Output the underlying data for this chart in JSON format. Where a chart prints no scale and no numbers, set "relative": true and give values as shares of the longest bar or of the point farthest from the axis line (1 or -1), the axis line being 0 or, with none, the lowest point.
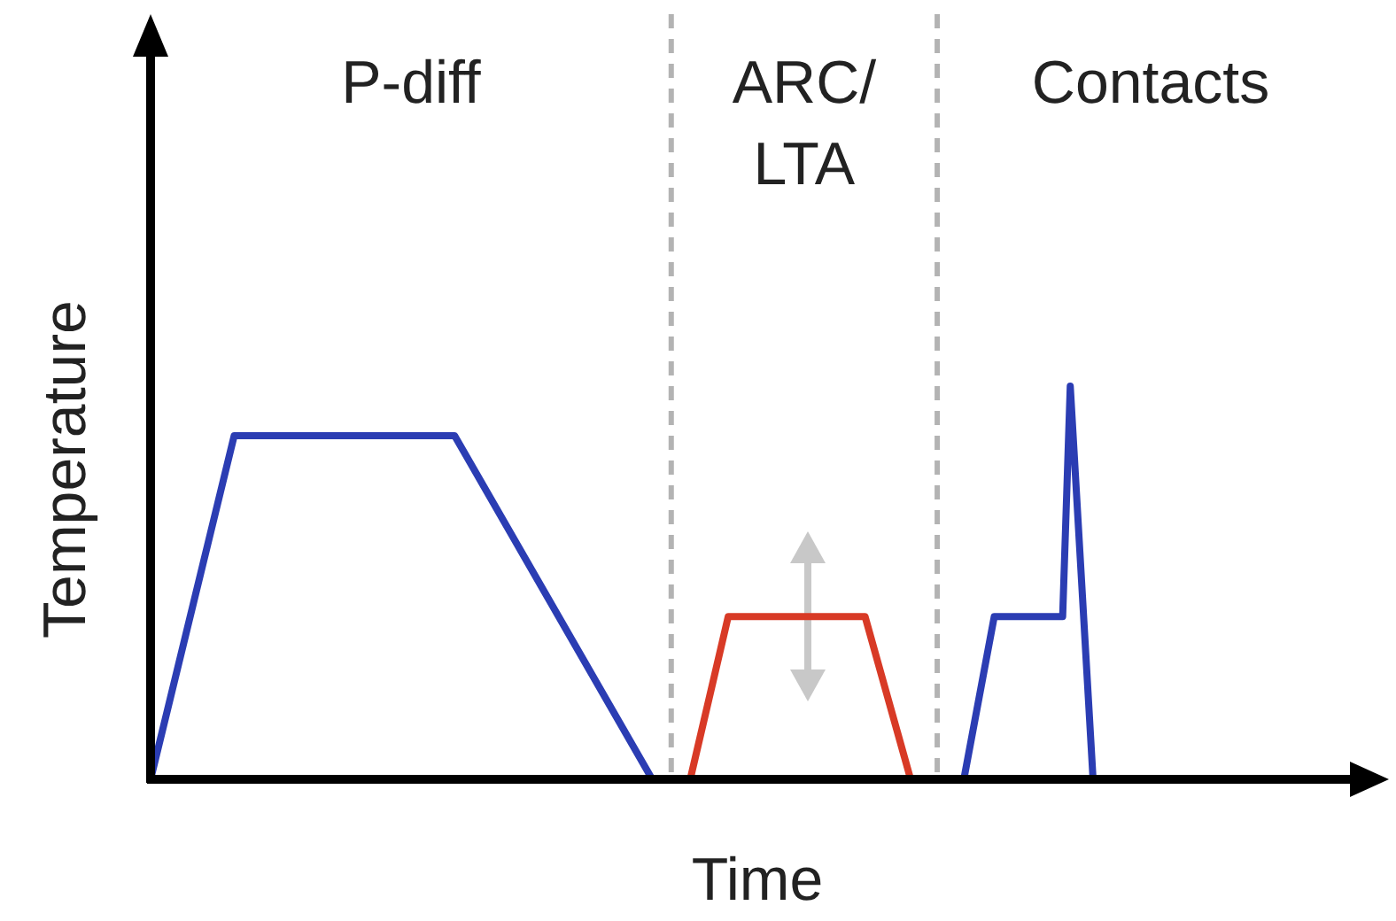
{
  "chart_data": {
    "type": "line",
    "relative": true,
    "xlabel": "Time",
    "ylabel": "Temperature",
    "marker": "none",
    "line_style": "solid",
    "categories": [
      null,
      null,
      null,
      null,
      null,
      null,
      null,
      null,
      null,
      null,
      null,
      null,
      null,
      null,
      null,
      null,
      null,
      null,
      null,
      null,
      null,
      null,
      null,
      null,
      null,
      null,
      null,
      null,
      null,
      null,
      null,
      null,
      null,
      null,
      null,
      null,
      null,
      null,
      null,
      null,
      null,
      null,
      null,
      null,
      null,
      null,
      null,
      null,
      null,
      null,
      null,
      null,
      null,
      null,
      null,
      null,
      null,
      null,
      null,
      null,
      null,
      null,
      null,
      null,
      null,
      null,
      null,
      null,
      null,
      null,
      null,
      null,
      null,
      null,
      null,
      null,
      null,
      null,
      null,
      null,
      null,
      null,
      null,
      null,
      null,
      null,
      null,
      null,
      null,
      null,
      null,
      null,
      null,
      null,
      null,
      null,
      null,
      null,
      null,
      null,
      null,
      null,
      null,
      null,
      null,
      null,
      null,
      null,
      null,
      null,
      null,
      null,
      null,
      null,
      null,
      null,
      null,
      null,
      null,
      null,
      null,
      null,
      null,
      null,
      null
    ],
    "series": [
      {
        "color": "#2b3db3",
        "values": [
          0,
          null,
          null,
          null,
          null,
          null,
          null,
          null,
          null,
          null,
          null,
          0.874,
          null,
          null,
          null,
          null,
          null,
          null,
          null,
          null,
          null,
          null,
          null,
          null,
          null,
          null,
          null,
          null,
          null,
          null,
          null,
          null,
          null,
          null,
          null,
          null,
          null,
          null,
          null,
          null,
          0.874,
          null,
          null,
          null,
          null,
          null,
          null,
          null,
          null,
          null,
          null,
          null,
          null,
          null,
          null,
          null,
          null,
          null,
          null,
          null,
          null,
          null,
          null,
          null,
          null,
          null,
          0,
          null,
          null,
          null,
          null,
          0,
          null,
          null,
          null,
          null,
          null,
          null,
          null,
          null,
          null,
          null,
          null,
          null,
          null,
          null,
          null,
          null,
          null,
          null,
          null,
          null,
          null,
          null,
          null,
          null,
          null,
          null,
          null,
          null,
          null,
          null,
          null,
          null,
          null,
          null,
          null,
          null,
          null,
          null,
          null,
          null,
          null,
          null,
          null,
          null,
          null,
          null,
          null,
          null,
          null,
          null,
          null,
          null,
          null
        ]
      },
      {
        "color": "#d83a26",
        "values": [
          null,
          null,
          null,
          null,
          null,
          null,
          null,
          null,
          null,
          null,
          null,
          null,
          null,
          null,
          null,
          null,
          null,
          null,
          null,
          null,
          null,
          null,
          null,
          null,
          null,
          null,
          null,
          null,
          null,
          null,
          null,
          null,
          null,
          null,
          null,
          null,
          null,
          null,
          null,
          null,
          null,
          null,
          null,
          null,
          null,
          null,
          null,
          null,
          null,
          null,
          null,
          null,
          null,
          null,
          null,
          null,
          null,
          null,
          null,
          null,
          null,
          null,
          null,
          null,
          null,
          null,
          null,
          null,
          null,
          null,
          null,
          0,
          null,
          null,
          null,
          null,
          0.414,
          null,
          null,
          null,
          null,
          null,
          null,
          null,
          null,
          null,
          null,
          null,
          null,
          null,
          null,
          null,
          null,
          null,
          0.414,
          null,
          null,
          null,
          null,
          null,
          0,
          null,
          null,
          null,
          null,
          null,
          null,
          null,
          null,
          null,
          null,
          null,
          null,
          null,
          null,
          null,
          null,
          null,
          null,
          null,
          null,
          null,
          null,
          null,
          null
        ]
      },
      {
        "color": "#2b3db3",
        "values": [
          null,
          null,
          null,
          null,
          null,
          null,
          null,
          null,
          null,
          null,
          null,
          null,
          null,
          null,
          null,
          null,
          null,
          null,
          null,
          null,
          null,
          null,
          null,
          null,
          null,
          null,
          null,
          null,
          null,
          null,
          null,
          null,
          null,
          null,
          null,
          null,
          null,
          null,
          null,
          null,
          null,
          null,
          null,
          null,
          null,
          null,
          null,
          null,
          null,
          null,
          null,
          null,
          null,
          null,
          null,
          null,
          null,
          null,
          null,
          null,
          null,
          null,
          null,
          null,
          null,
          null,
          null,
          null,
          null,
          null,
          null,
          null,
          null,
          null,
          null,
          null,
          null,
          null,
          null,
          null,
          null,
          null,
          null,
          null,
          null,
          null,
          null,
          null,
          null,
          null,
          null,
          null,
          null,
          null,
          null,
          null,
          null,
          null,
          null,
          null,
          0,
          null,
          null,
          null,
          null,
          null,
          null,
          0,
          null,
          null,
          null,
          0.414,
          null,
          null,
          null,
          null,
          null,
          null,
          null,
          null,
          0.414,
          1,
          null,
          null,
          0
        ]
      }
    ],
    "annotations": [
      "P-diff",
      "ARC/\nLTA",
      "Contacts"
    ]
  }
}
